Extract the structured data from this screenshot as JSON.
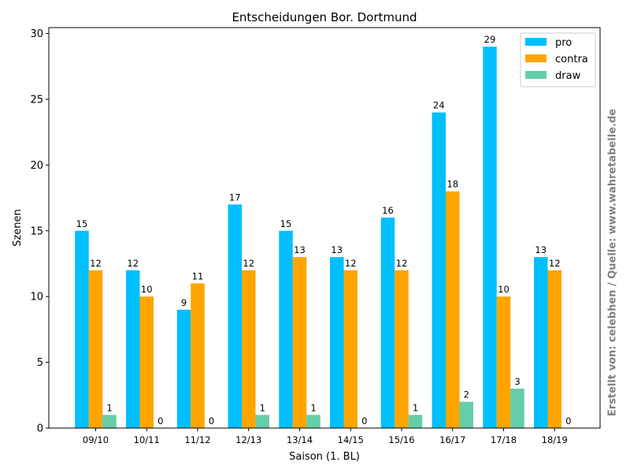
{
  "credit": "Erstellt von: celebhen / Quelle: www.wahretabelle.de",
  "chart_data": {
    "type": "bar",
    "title": "Entscheidungen Bor. Dortmund",
    "xlabel": "Saison (1. BL)",
    "ylabel": "Szenen",
    "categories": [
      "09/10",
      "10/11",
      "11/12",
      "12/13",
      "13/14",
      "14/15",
      "15/16",
      "16/17",
      "17/18",
      "18/19"
    ],
    "series": [
      {
        "name": "pro",
        "color": "#00bfff",
        "values": [
          15,
          12,
          9,
          17,
          15,
          13,
          16,
          24,
          29,
          13
        ]
      },
      {
        "name": "contra",
        "color": "#ffa500",
        "values": [
          12,
          10,
          11,
          12,
          13,
          12,
          12,
          18,
          10,
          12
        ]
      },
      {
        "name": "draw",
        "color": "#66cdaa",
        "values": [
          1,
          0,
          0,
          1,
          1,
          0,
          1,
          2,
          3,
          0
        ]
      }
    ],
    "ylim": [
      0,
      30.45
    ],
    "yticks": [
      "0",
      "5",
      "10",
      "15",
      "20",
      "25",
      "30"
    ],
    "legend_position": "top-right",
    "grid": false
  }
}
